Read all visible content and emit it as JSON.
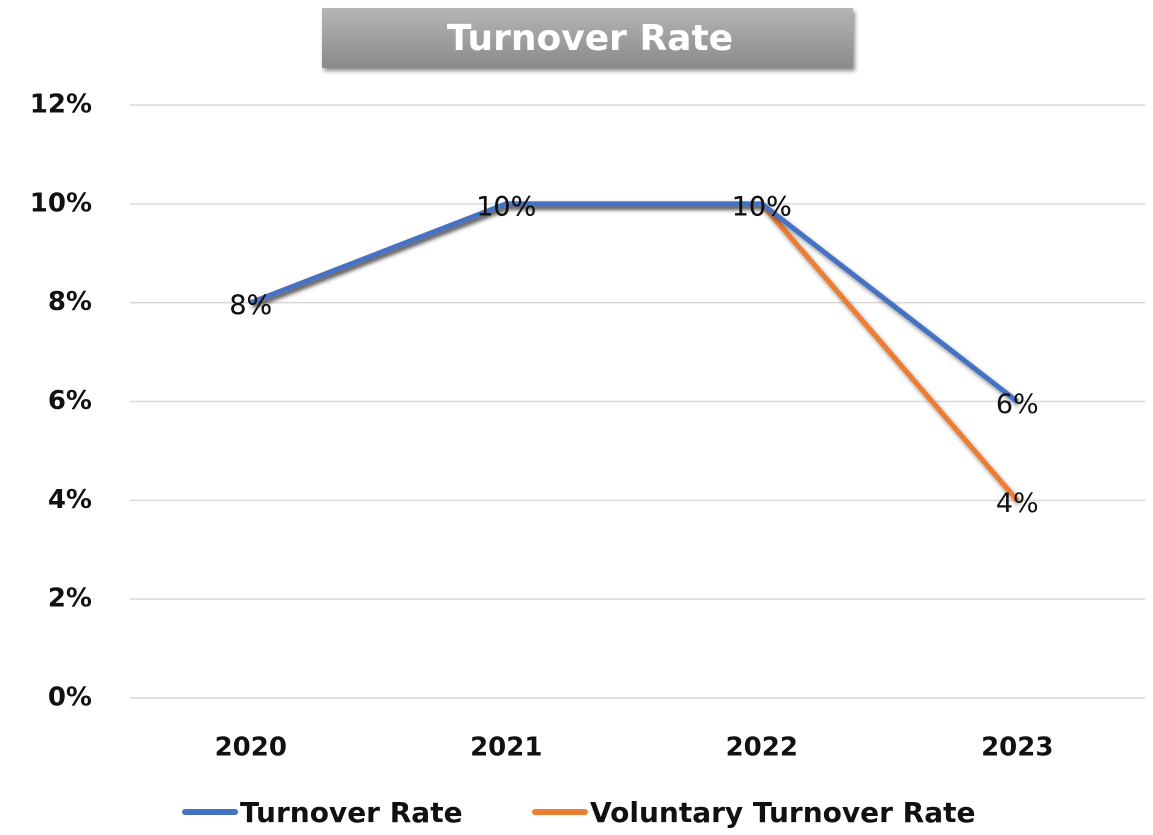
{
  "chart_data": {
    "type": "line",
    "title": "Turnover Rate",
    "categories": [
      "2020",
      "2021",
      "2022",
      "2023"
    ],
    "series": [
      {
        "name": "Turnover Rate",
        "color": "#4472c4",
        "values": [
          8,
          10,
          10,
          6
        ],
        "value_labels": [
          "8%",
          "10%",
          "10%",
          "6%"
        ]
      },
      {
        "name": "Voluntary Turnover Rate",
        "color": "#ed7d31",
        "values": [
          8,
          10,
          10,
          4
        ],
        "value_labels": [
          "8%",
          "10%",
          "10%",
          "4%"
        ]
      }
    ],
    "ylim": [
      0,
      12
    ],
    "yticks": [
      {
        "value": 0,
        "label": "0%"
      },
      {
        "value": 2,
        "label": "2%"
      },
      {
        "value": 4,
        "label": "4%"
      },
      {
        "value": 6,
        "label": "6%"
      },
      {
        "value": 8,
        "label": "8%"
      },
      {
        "value": 10,
        "label": "10%"
      },
      {
        "value": 12,
        "label": "12%"
      }
    ],
    "grid": true,
    "legend": "bottom"
  }
}
